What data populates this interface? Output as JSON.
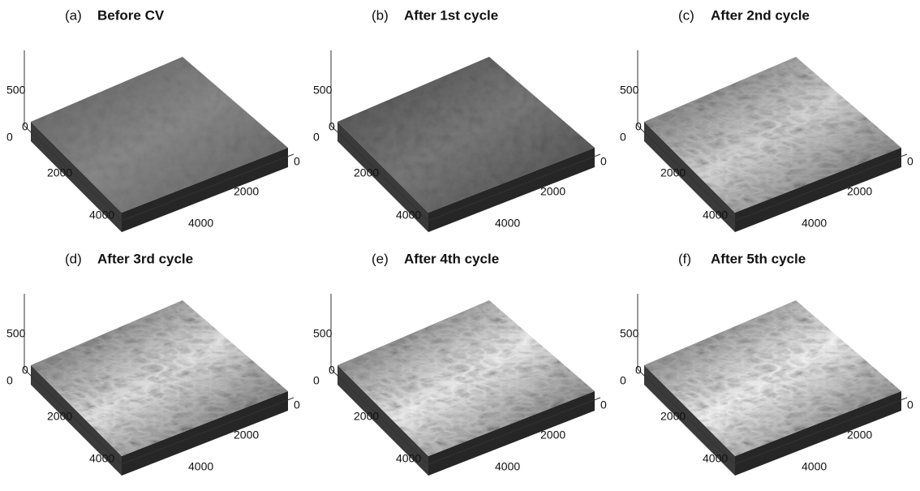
{
  "panels": [
    {
      "label": "(a)",
      "title": "Before CV",
      "z_ticks": [
        500,
        0
      ],
      "left_ticks": [
        0,
        2000,
        4000
      ],
      "right_ticks": [
        0,
        2000,
        4000
      ]
    },
    {
      "label": "(b)",
      "title": "After 1st  cycle",
      "z_ticks": [
        500,
        0
      ],
      "left_ticks": [
        0,
        2000,
        4000
      ],
      "right_ticks": [
        0,
        2000,
        4000
      ]
    },
    {
      "label": "(c)",
      "title": "After 2nd  cycle",
      "z_ticks": [
        500,
        0
      ],
      "left_ticks": [
        0,
        2000,
        4000
      ],
      "right_ticks": [
        0,
        2000,
        4000
      ]
    },
    {
      "label": "(d)",
      "title": "After 3rd  cycle",
      "z_ticks": [
        500,
        0
      ],
      "left_ticks": [
        0,
        2000,
        4000
      ],
      "right_ticks": [
        0,
        2000,
        4000
      ]
    },
    {
      "label": "(e)",
      "title": "After 4th  cycle",
      "z_ticks": [
        500,
        0
      ],
      "left_ticks": [
        0,
        2000,
        4000
      ],
      "right_ticks": [
        0,
        2000,
        4000
      ]
    },
    {
      "label": "(f)",
      "title": "After 5th  cycle",
      "z_ticks": [
        500,
        0
      ],
      "left_ticks": [
        0,
        2000,
        4000
      ],
      "right_ticks": [
        0,
        2000,
        4000
      ]
    }
  ]
}
